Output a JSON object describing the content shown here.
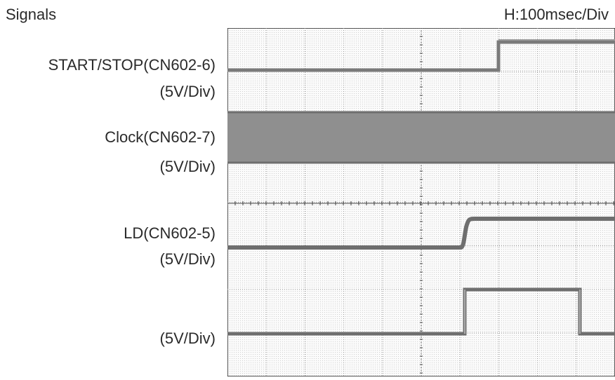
{
  "header": {
    "title": "Signals",
    "timebase": "H:100msec/Div"
  },
  "channels": [
    {
      "name": "START/STOP(CN602-6)",
      "scale": "(5V/Div)"
    },
    {
      "name": "Clock(CN602-7)",
      "scale": "(5V/Div)"
    },
    {
      "name": "LD(CN602-5)",
      "scale": "(5V/Div)"
    },
    {
      "name": "",
      "scale": "(5V/Div)"
    }
  ],
  "colors": {
    "trace": "#6e6e6e",
    "grid": "#9a9a9a",
    "screen": "#f7f7f7",
    "text": "#2a2a2a"
  }
}
